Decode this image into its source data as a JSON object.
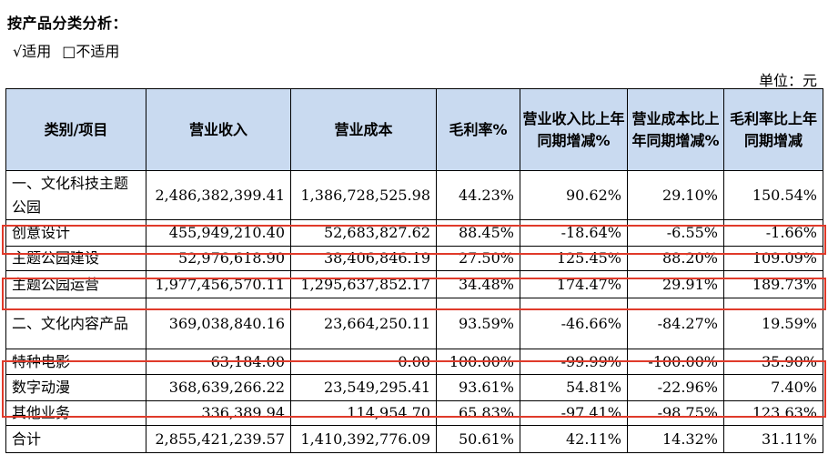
{
  "heading": "按产品分类分析：",
  "applicability": {
    "applies_label": "√适用",
    "not_applies_label": "□不适用"
  },
  "unit": "单位：元",
  "table": {
    "columns": [
      "类别/项目",
      "营业收入",
      "营业成本",
      "毛利率%",
      "营业收入比上年同期增减%",
      "营业成本比上年同期增减%",
      "毛利率比上年同期增减"
    ],
    "rows": [
      [
        "一、文化科技主题公园",
        "2,486,382,399.41",
        "1,386,728,525.98",
        "44.23%",
        "90.62%",
        "29.10%",
        "150.54%"
      ],
      [
        "创意设计",
        "455,949,210.40",
        "52,683,827.62",
        "88.45%",
        "-18.64%",
        "-6.55%",
        "-1.66%"
      ],
      [
        "主题公园建设",
        "52,976,618.90",
        "38,406,846.19",
        "27.50%",
        "125.45%",
        "88.20%",
        "109.09%"
      ],
      [
        "主题公园运营",
        "1,977,456,570.11",
        "1,295,637,852.17",
        "34.48%",
        "174.47%",
        "29.91%",
        "189.73%"
      ],
      [
        "二、文化内容产品",
        "369,038,840.16",
        "23,664,250.11",
        "93.59%",
        "-46.66%",
        "-84.27%",
        "19.59%"
      ],
      [
        "特种电影",
        "63,184.00",
        "0.00",
        "100.00%",
        "-99.99%",
        "-100.00%",
        "35.90%"
      ],
      [
        "数字动漫",
        "368,639,266.22",
        "23,549,295.41",
        "93.61%",
        "54.81%",
        "-22.96%",
        "7.40%"
      ],
      [
        "其他业务",
        "336,389.94",
        "114,954.70",
        "65.83%",
        "-97.41%",
        "-98.75%",
        "123.63%"
      ],
      [
        "合计",
        "2,855,421,239.57",
        "1,410,392,776.09",
        "50.61%",
        "42.11%",
        "14.32%",
        "31.11%"
      ]
    ]
  },
  "colors": {
    "header_background": "#c9daf0",
    "highlight_outline": "#e03a2a"
  }
}
